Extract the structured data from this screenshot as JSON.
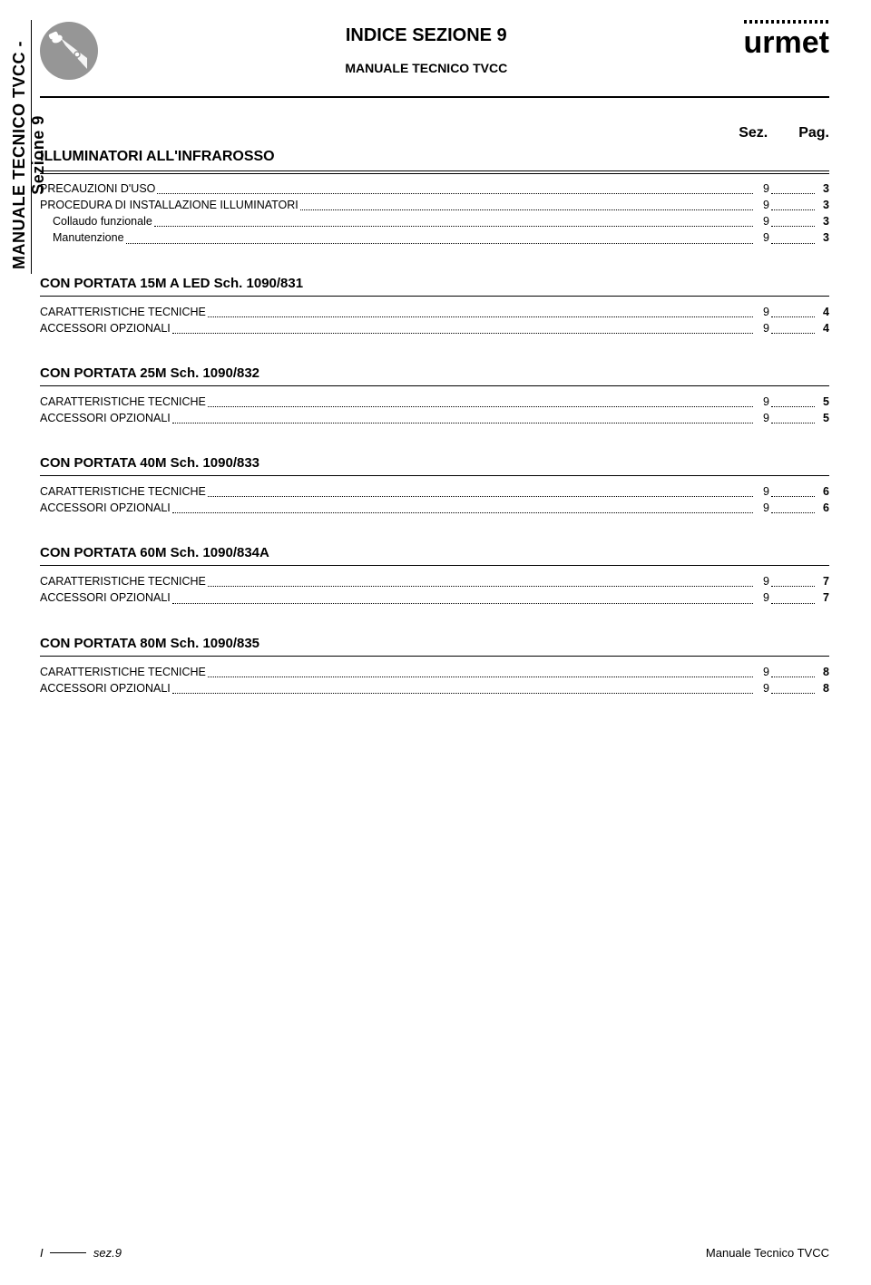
{
  "side_label": "MANUALE TECNICO TVCC - Sezione 9",
  "header": {
    "title": "INDICE SEZIONE 9",
    "subtitle": "MANUALE TECNICO TVCC",
    "brand": "urmet"
  },
  "columns": {
    "sez": "Sez.",
    "pag": "Pag."
  },
  "main_section_title": "ILLUMINATORI ALL'INFRAROSSO",
  "main_section_items": [
    {
      "label": "PRECAUZIONI D'USO",
      "sez": "9",
      "pag": "3",
      "indent": false
    },
    {
      "label": "PROCEDURA DI INSTALLAZIONE ILLUMINATORI",
      "sez": "9",
      "pag": "3",
      "indent": false
    },
    {
      "label": "Collaudo funzionale",
      "sez": "9",
      "pag": "3",
      "indent": true
    },
    {
      "label": "Manutenzione",
      "sez": "9",
      "pag": "3",
      "indent": true
    }
  ],
  "groups": [
    {
      "title": "CON PORTATA 15M A LED Sch. 1090/831",
      "items": [
        {
          "label": "CARATTERISTICHE TECNICHE",
          "sez": "9",
          "pag": "4"
        },
        {
          "label": "ACCESSORI OPZIONALI",
          "sez": "9",
          "pag": "4"
        }
      ]
    },
    {
      "title": "CON PORTATA 25M Sch. 1090/832",
      "items": [
        {
          "label": "CARATTERISTICHE TECNICHE",
          "sez": "9",
          "pag": "5"
        },
        {
          "label": "ACCESSORI OPZIONALI",
          "sez": "9",
          "pag": "5"
        }
      ]
    },
    {
      "title": "CON PORTATA 40M Sch. 1090/833",
      "items": [
        {
          "label": "CARATTERISTICHE TECNICHE",
          "sez": "9",
          "pag": "6"
        },
        {
          "label": "ACCESSORI OPZIONALI",
          "sez": "9",
          "pag": "6"
        }
      ]
    },
    {
      "title": "CON PORTATA 60M Sch. 1090/834A",
      "items": [
        {
          "label": "CARATTERISTICHE TECNICHE",
          "sez": "9",
          "pag": "7"
        },
        {
          "label": "ACCESSORI OPZIONALI",
          "sez": "9",
          "pag": "7"
        }
      ]
    },
    {
      "title": "CON PORTATA 80M Sch. 1090/835",
      "items": [
        {
          "label": "CARATTERISTICHE TECNICHE",
          "sez": "9",
          "pag": "8"
        },
        {
          "label": "ACCESSORI OPZIONALI",
          "sez": "9",
          "pag": "8"
        }
      ]
    }
  ],
  "footer": {
    "left_prefix": "I",
    "left_suffix": "sez.9",
    "right": "Manuale Tecnico TVCC"
  },
  "colors": {
    "icon_bg": "#969696",
    "text": "#000000",
    "page_bg": "#ffffff"
  }
}
